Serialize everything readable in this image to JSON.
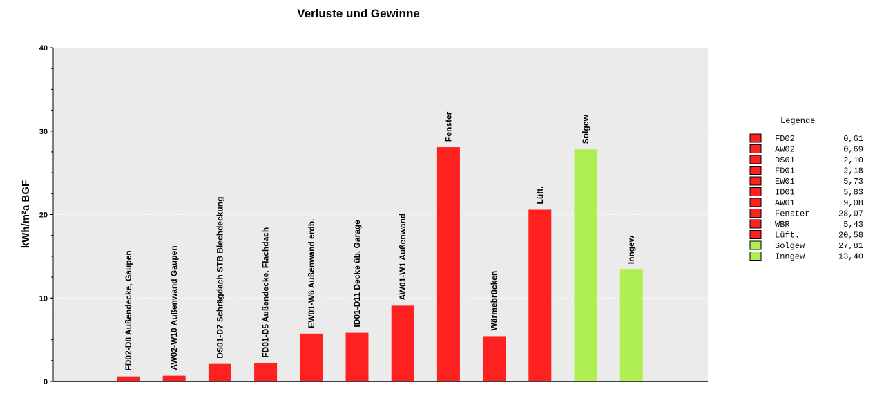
{
  "chart_data": {
    "type": "bar",
    "title": "Verluste und Gewinne",
    "xlabel": "",
    "ylabel": "kWh/m²a BGF",
    "ylim": [
      0,
      40
    ],
    "yticks": [
      0,
      10,
      20,
      30,
      40
    ],
    "grid": true,
    "legend_position": "right",
    "categories": [
      "FD02-D8 Außendecke, Gaupen",
      "AW02-W10 Außenwand Gaupen",
      "DS01-D7 Schrägdach STB Blechdeckung",
      "FD01-D5 Außendecke, Flachdach",
      "EW01-W6 Außenwand erdb.",
      "ID01-D11 Decke üb. Garage",
      "AW01-W1 Außenwand",
      "Fenster",
      "Wärmebrücken",
      "Lüft.",
      "Solgew",
      "Inngew"
    ],
    "values": [
      0.61,
      0.69,
      2.1,
      2.18,
      5.73,
      5.83,
      9.08,
      28.07,
      5.43,
      20.58,
      27.81,
      13.4
    ],
    "bar_groups": [
      "loss",
      "loss",
      "loss",
      "loss",
      "loss",
      "loss",
      "loss",
      "loss",
      "loss",
      "loss",
      "gain",
      "gain"
    ],
    "colors": {
      "loss": "#ff2020",
      "gain": "#b0ef52",
      "plot_bg": "#ebebeb",
      "grid": "#ffffff"
    },
    "legend": {
      "title": "Legende",
      "entries": [
        {
          "name": "FD02",
          "value": "0,61",
          "group": "loss"
        },
        {
          "name": "AW02",
          "value": "0,69",
          "group": "loss"
        },
        {
          "name": "DS01",
          "value": "2,10",
          "group": "loss"
        },
        {
          "name": "FD01",
          "value": "2,18",
          "group": "loss"
        },
        {
          "name": "EW01",
          "value": "5,73",
          "group": "loss"
        },
        {
          "name": "ID01",
          "value": "5,83",
          "group": "loss"
        },
        {
          "name": "AW01",
          "value": "9,08",
          "group": "loss"
        },
        {
          "name": "Fenster",
          "value": "28,07",
          "group": "loss"
        },
        {
          "name": "WBR",
          "value": "5,43",
          "group": "loss"
        },
        {
          "name": "Lüft.",
          "value": "20,58",
          "group": "loss"
        },
        {
          "name": "Solgew",
          "value": "27,81",
          "group": "gain"
        },
        {
          "name": "Inngew",
          "value": "13,40",
          "group": "gain"
        }
      ]
    }
  }
}
